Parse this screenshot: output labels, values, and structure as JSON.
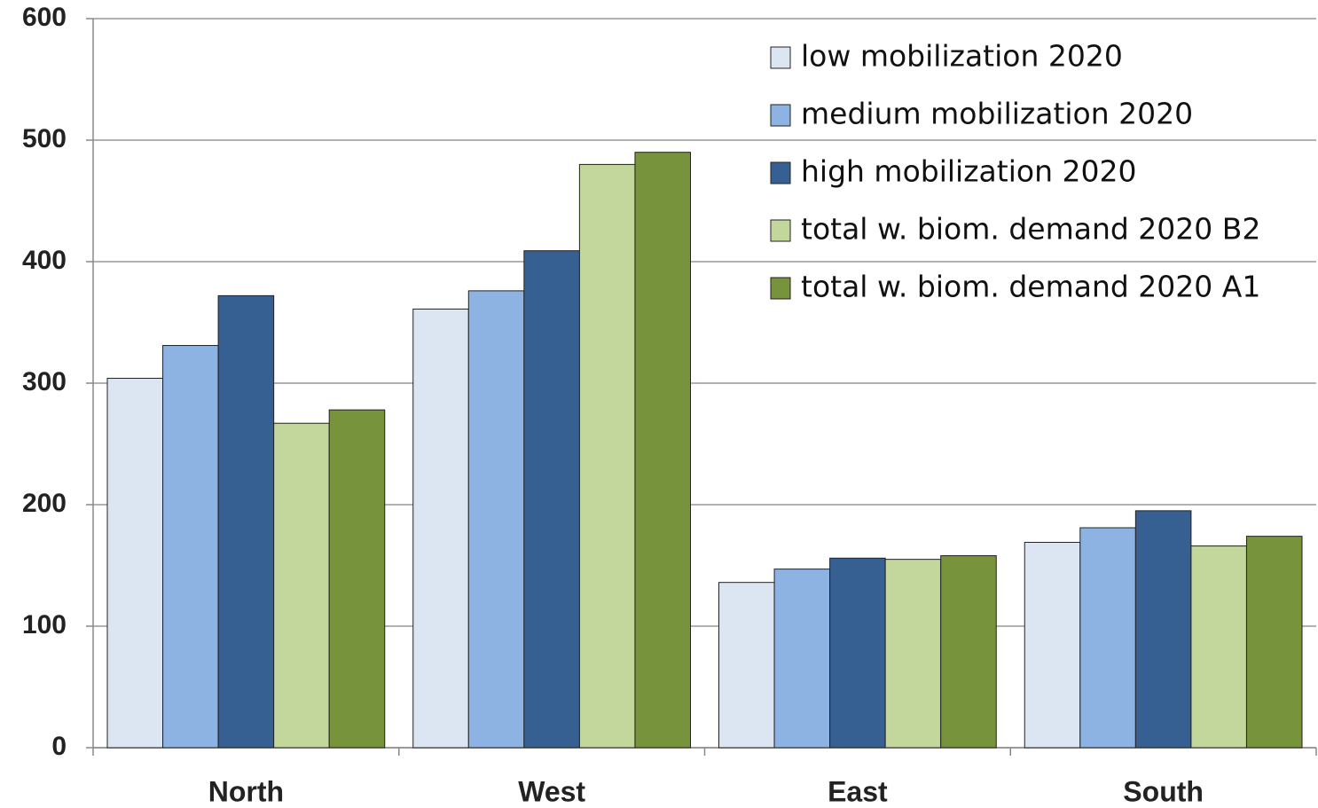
{
  "chart_data": {
    "type": "bar",
    "categories": [
      "North",
      "West",
      "East",
      "South"
    ],
    "series": [
      {
        "name": "low mobilization 2020",
        "color": "#dce6f2",
        "values": [
          304,
          361,
          136,
          169
        ]
      },
      {
        "name": "medium mobilization 2020",
        "color": "#8db3e2",
        "values": [
          331,
          376,
          147,
          181
        ]
      },
      {
        "name": "high mobilization 2020",
        "color": "#376092",
        "values": [
          372,
          409,
          156,
          195
        ]
      },
      {
        "name": "total w. biom. demand 2020 B2",
        "color": "#c3d69b",
        "values": [
          267,
          480,
          155,
          166
        ]
      },
      {
        "name": "total w. biom. demand 2020 A1",
        "color": "#77933c",
        "values": [
          278,
          490,
          158,
          174
        ]
      }
    ],
    "ylim": [
      0,
      600
    ],
    "yticks": [
      0,
      100,
      200,
      300,
      400,
      500,
      600
    ],
    "grid": true
  }
}
